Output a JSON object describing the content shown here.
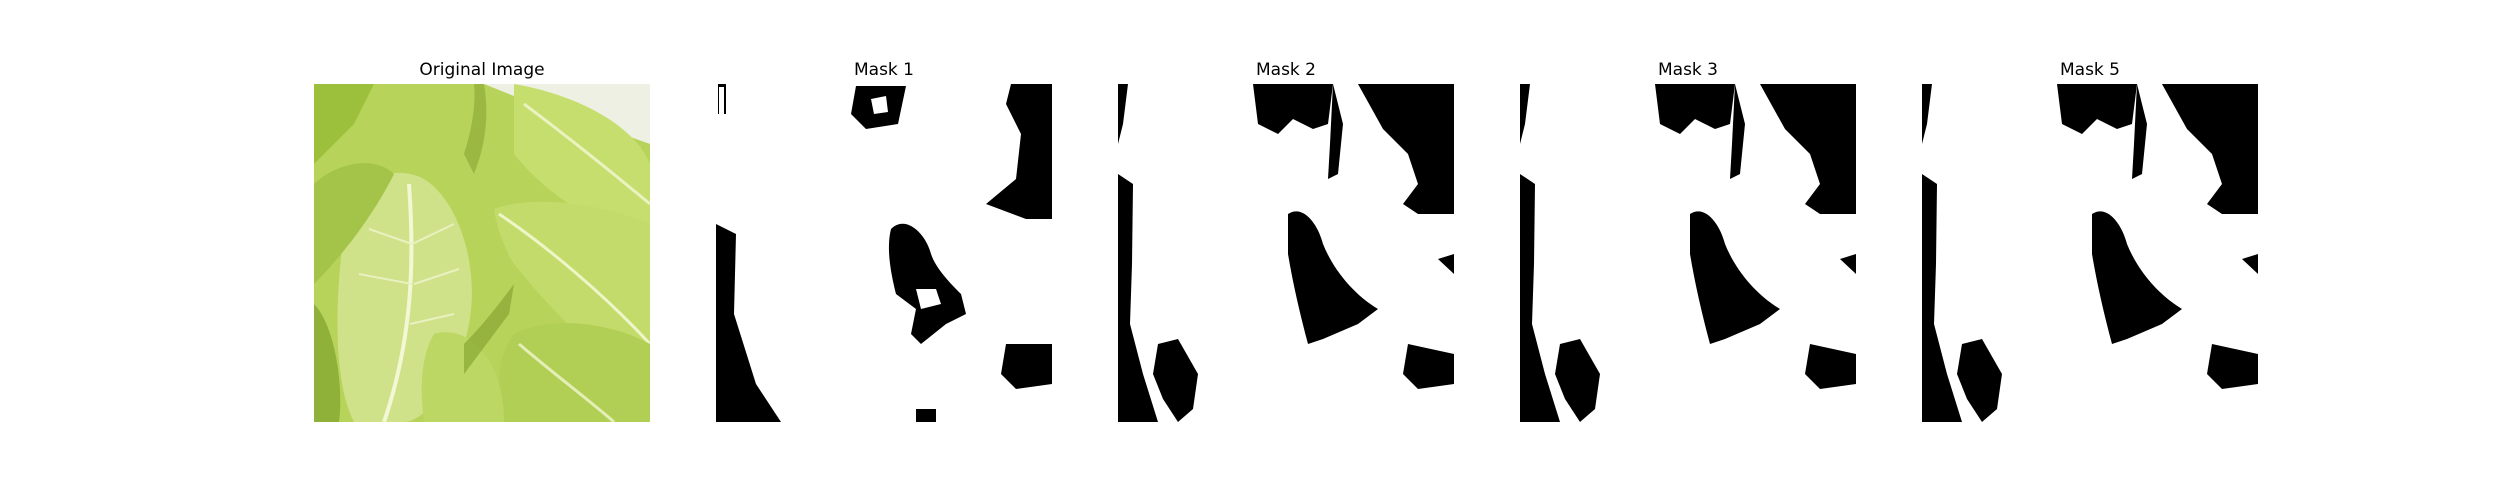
{
  "figure": {
    "panels": [
      {
        "title": "Original Image",
        "kind": "photo"
      },
      {
        "title": "Mask 1",
        "kind": "mask"
      },
      {
        "title": "Mask 2",
        "kind": "mask"
      },
      {
        "title": "Mask 3",
        "kind": "mask"
      },
      {
        "title": "Mask 5",
        "kind": "mask"
      }
    ],
    "colors": {
      "leaf_light": "#cfe28a",
      "leaf_mid": "#a9c94a",
      "leaf_dark": "#7f9e2c",
      "vein": "#eef4c8",
      "mask_fg": "#ffffff",
      "mask_bg": "#000000"
    }
  }
}
